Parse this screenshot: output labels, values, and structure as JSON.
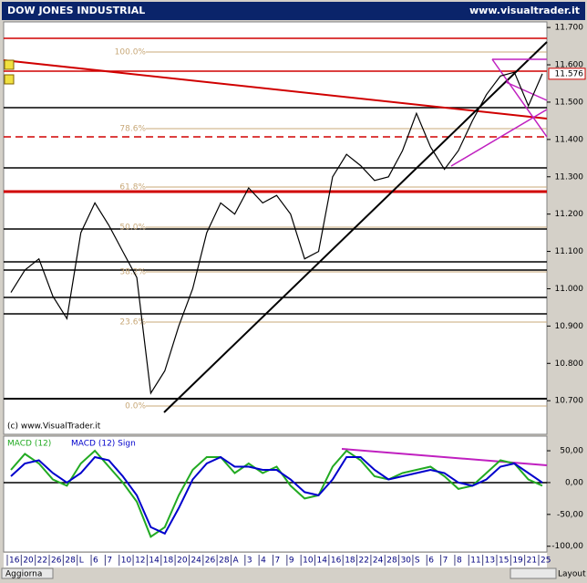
{
  "header": {
    "title": "DOW JONES INDUSTRIAL",
    "site": "www.visualtrader.it"
  },
  "copyright": "(c) www.VisualTrader.it",
  "fib_labels": [
    "100.0%",
    "78.6%",
    "61.8%",
    "50.0%",
    "38.2%",
    "23.6%",
    "0.0%"
  ],
  "toolbar": {
    "refresh": "Aggiorna",
    "layout": "Layout"
  },
  "chart_data": [
    {
      "type": "line",
      "categories": [
        "16",
        "20",
        "22",
        "26",
        "28",
        "L",
        "6",
        "7",
        "10",
        "12",
        "14",
        "18",
        "20",
        "24",
        "26",
        "28",
        "A",
        "3",
        "4",
        "7",
        "9",
        "10",
        "14",
        "16",
        "18",
        "22",
        "24",
        "28",
        "30",
        "S",
        "6",
        "7",
        "8",
        "11",
        "13",
        "15",
        "19",
        "21",
        "25"
      ],
      "values": [
        10990,
        11050,
        11080,
        10980,
        10920,
        11150,
        11230,
        11170,
        11100,
        11030,
        10720,
        10780,
        10900,
        11000,
        11150,
        11230,
        11200,
        11270,
        11230,
        11250,
        11200,
        11080,
        11100,
        11300,
        11360,
        11330,
        11290,
        11300,
        11370,
        11470,
        11380,
        11320,
        11370,
        11450,
        11520,
        11570,
        11580,
        11490,
        11576
      ],
      "color": "#000000",
      "last_value": {
        "value": 11576,
        "label": "11.576"
      },
      "ylim": [
        10610,
        11715
      ],
      "yticks": [
        {
          "value": 10700,
          "label": "10.700"
        },
        {
          "value": 10800,
          "label": "10.800"
        },
        {
          "value": 10900,
          "label": "10.900"
        },
        {
          "value": 11000,
          "label": "11.000"
        },
        {
          "value": 11100,
          "label": "11.100"
        },
        {
          "value": 11200,
          "label": "11.200"
        },
        {
          "value": 11300,
          "label": "11.300"
        },
        {
          "value": 11400,
          "label": "11.400"
        },
        {
          "value": 11500,
          "label": "11.500"
        },
        {
          "value": 11600,
          "label": "11.600"
        },
        {
          "value": 11700,
          "label": "11.700"
        }
      ]
    },
    {
      "type": "line",
      "series": [
        {
          "name": "MACD (12)",
          "color": "#22aa22",
          "values": [
            20,
            45,
            30,
            5,
            -5,
            30,
            50,
            25,
            0,
            -30,
            -85,
            -70,
            -20,
            20,
            40,
            40,
            15,
            30,
            15,
            25,
            -5,
            -25,
            -20,
            25,
            50,
            35,
            10,
            5,
            15,
            20,
            25,
            10,
            -10,
            -5,
            15,
            35,
            30,
            5,
            -5
          ]
        },
        {
          "name": "MACD (12) Sign",
          "color": "#0000cc",
          "values": [
            10,
            30,
            35,
            15,
            0,
            15,
            40,
            35,
            10,
            -20,
            -70,
            -80,
            -40,
            5,
            30,
            40,
            25,
            25,
            20,
            20,
            5,
            -15,
            -20,
            5,
            40,
            40,
            20,
            5,
            10,
            15,
            20,
            15,
            0,
            -5,
            5,
            25,
            30,
            15,
            0
          ]
        }
      ],
      "ylim": [
        -109,
        73
      ],
      "yticks": [
        {
          "value": 50,
          "label": "50,00"
        },
        {
          "value": 0,
          "label": "0,00"
        },
        {
          "value": -50,
          "label": "-50,00"
        },
        {
          "value": -100,
          "label": "-100,00"
        }
      ]
    }
  ]
}
